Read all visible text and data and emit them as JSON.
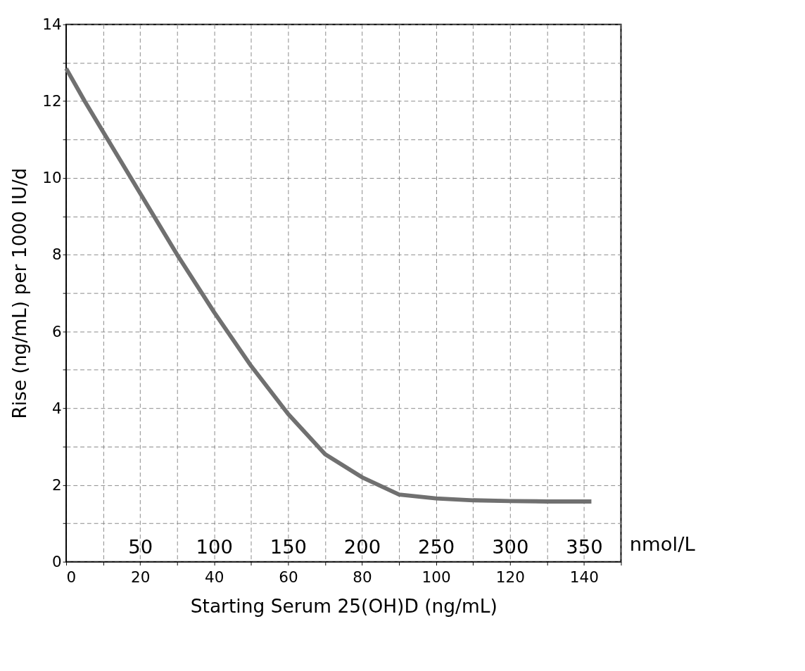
{
  "chart_data": {
    "type": "line",
    "xlabel": "Starting Serum 25(OH)D (ng/mL)",
    "ylabel": "Rise (ng/mL) per 1000 IU/d",
    "x2label": "nmol/L",
    "series": [
      {
        "color": "#707070",
        "x": [
          0,
          5,
          10,
          20,
          30,
          40,
          50,
          60,
          70,
          80,
          90,
          100,
          110,
          120,
          130,
          142
        ],
        "values": [
          12.85,
          12.0,
          11.2,
          9.6,
          8.0,
          6.5,
          5.1,
          3.85,
          2.8,
          2.2,
          1.75,
          1.65,
          1.6,
          1.58,
          1.57,
          1.57
        ]
      }
    ],
    "xlim": [
      0,
      150
    ],
    "ylim": [
      0,
      14
    ],
    "xticks": [
      0,
      {
        "value": 10,
        "label": null
      },
      20,
      {
        "value": 30,
        "label": null
      },
      40,
      {
        "value": 50,
        "label": null
      },
      60,
      {
        "value": 70,
        "label": null
      },
      80,
      {
        "value": 90,
        "label": null
      },
      100,
      {
        "value": 110,
        "label": null
      },
      120,
      {
        "value": 130,
        "label": null
      },
      140,
      {
        "value": 150,
        "label": null
      }
    ],
    "yticks": [
      0,
      {
        "value": 1,
        "label": null
      },
      2,
      {
        "value": 3,
        "label": null
      },
      4,
      {
        "value": 5,
        "label": null
      },
      6,
      {
        "value": 7,
        "label": null
      },
      8,
      {
        "value": 9,
        "label": null
      },
      10,
      {
        "value": 11,
        "label": null
      },
      12,
      {
        "value": 13,
        "label": null
      },
      14
    ],
    "x2lim": [
      0,
      375
    ],
    "x2ticks": [
      50,
      100,
      150,
      200,
      250,
      300,
      350
    ],
    "grid": true,
    "line_style": "solid",
    "marker": "none"
  }
}
